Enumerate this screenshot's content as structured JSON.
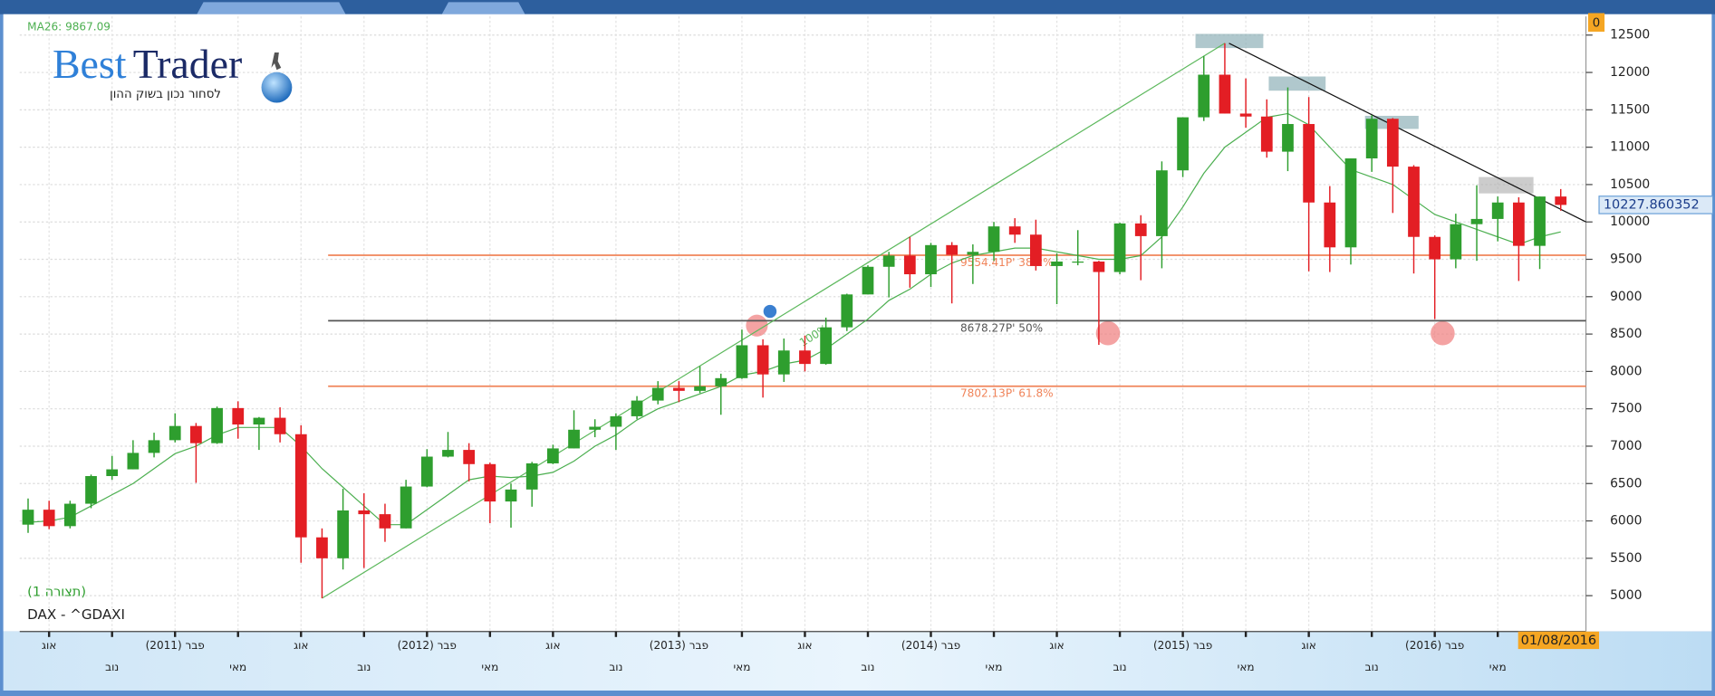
{
  "logo": {
    "best": "Best",
    "trader": "Trader",
    "tagline": "לסחור נכון בשוק ההון"
  },
  "chart_data": {
    "type": "candlestick",
    "symbol_label": "DAX - ^GDAXI",
    "layout_label": "(תצורה 1)",
    "date_label": "01/08/2016",
    "corner_tag": 0,
    "up_color": "#2e9e2e",
    "down_color": "#e31e24",
    "open": [
      5950,
      6150,
      5930,
      6230,
      6600,
      6690,
      6910,
      7080,
      7270,
      7040,
      7510,
      7290,
      7380,
      7160,
      5780,
      5500,
      6140,
      6090,
      5900,
      6460,
      6860,
      6950,
      6760,
      6260,
      6420,
      6770,
      6970,
      7220,
      7260,
      7400,
      7610,
      7780,
      7740,
      7800,
      7910,
      8350,
      7960,
      8280,
      8100,
      8590,
      9030,
      9400,
      9550,
      9300,
      9690,
      9560,
      9600,
      9940,
      9830,
      9410,
      9470,
      9470,
      9330,
      9980,
      9810,
      10690,
      11400,
      11970,
      11450,
      11410,
      10940,
      11310,
      10260,
      9660,
      10850,
      11380,
      10740,
      9800,
      9500,
      9970,
      10040,
      10260,
      9680,
      10340
    ],
    "high": [
      6300,
      6270,
      6270,
      6620,
      6870,
      7080,
      7180,
      7440,
      7310,
      7530,
      7600,
      7390,
      7520,
      7280,
      5900,
      6430,
      6370,
      6230,
      6550,
      6960,
      7190,
      7040,
      6780,
      6500,
      6790,
      7020,
      7480,
      7360,
      7440,
      7670,
      7870,
      7870,
      8070,
      7970,
      8560,
      8430,
      8440,
      8480,
      8720,
      9040,
      9420,
      9600,
      9800,
      9720,
      9730,
      9700,
      10000,
      10050,
      10030,
      9580,
      9890,
      9480,
      9990,
      10090,
      10810,
      11400,
      12220,
      12390.72,
      11920,
      11640,
      11800,
      11670,
      10480,
      10850,
      11430,
      11390,
      10760,
      9820,
      10110,
      10490,
      10340,
      10330,
      10340,
      10440
    ],
    "low": [
      5840,
      5890,
      5900,
      6170,
      6550,
      6690,
      6850,
      7050,
      6510,
      7030,
      7100,
      6950,
      7050,
      5440,
      4965.82,
      5350,
      5370,
      5720,
      5900,
      6450,
      6850,
      6530,
      5970,
      5910,
      6190,
      6760,
      6970,
      7120,
      6950,
      7360,
      7560,
      7590,
      7710,
      7420,
      7900,
      7650,
      7860,
      8000,
      8090,
      8540,
      9030,
      8990,
      9120,
      9130,
      8910,
      9170,
      9480,
      9720,
      9350,
      8900,
      9420,
      8355,
      9300,
      9220,
      9380,
      10600,
      11350,
      11450,
      11260,
      10860,
      10680,
      9340,
      9330,
      9430,
      10670,
      10120,
      9310,
      8700,
      9380,
      9480,
      9740,
      9210,
      9370,
      10150
    ],
    "close": [
      6150,
      5930,
      6230,
      6600,
      6690,
      6910,
      7080,
      7270,
      7040,
      7510,
      7290,
      7380,
      7160,
      5780,
      5500,
      6140,
      6090,
      5900,
      6460,
      6860,
      6950,
      6760,
      6260,
      6420,
      6770,
      6970,
      7220,
      7260,
      7400,
      7610,
      7780,
      7740,
      7800,
      7910,
      8350,
      7960,
      8280,
      8100,
      8590,
      9030,
      9400,
      9550,
      9300,
      9690,
      9560,
      9600,
      9940,
      9830,
      9410,
      9470,
      9470,
      9330,
      9980,
      9810,
      10690,
      11400,
      11970,
      11450,
      11410,
      10940,
      11310,
      10260,
      9660,
      10850,
      11380,
      10740,
      9800,
      9500,
      9970,
      10040,
      10260,
      9680,
      10340,
      10227.860352
    ],
    "ma": {
      "label": "MA26: 9867.09",
      "color": "#4caf50",
      "values": [
        5980,
        6000,
        6050,
        6200,
        6350,
        6500,
        6700,
        6900,
        7000,
        7150,
        7250,
        7250,
        7250,
        7000,
        6700,
        6450,
        6200,
        5950,
        5950,
        6150,
        6350,
        6550,
        6600,
        6580,
        6600,
        6650,
        6800,
        7000,
        7150,
        7350,
        7500,
        7600,
        7700,
        7800,
        7950,
        8000,
        8100,
        8150,
        8300,
        8500,
        8700,
        8950,
        9100,
        9300,
        9450,
        9550,
        9600,
        9650,
        9650,
        9600,
        9550,
        9500,
        9500,
        9550,
        9800,
        10200,
        10650,
        11000,
        11200,
        11400,
        11450,
        11300,
        11000,
        10700,
        10600,
        10500,
        10300,
        10100,
        10000,
        9900,
        9800,
        9700,
        9800,
        9867.09
      ]
    },
    "levels": [
      {
        "value": 9554.41,
        "label": "9554.41P' 38.2%",
        "color": "#f0845a"
      },
      {
        "value": 8678.27,
        "label": "8678.27P' 50%",
        "color": "#555555"
      },
      {
        "value": 7802.13,
        "label": "7802.13P' 61.8%",
        "color": "#f0845a"
      }
    ],
    "trendlines": [
      {
        "from": [
          14,
          4965.82
        ],
        "to": [
          57,
          12390.72
        ],
        "color": "#5cb85c",
        "label": "100%"
      },
      {
        "from": [
          57.2,
          12390.72
        ],
        "to": [
          74.2,
          10000
        ],
        "color": "#111111"
      }
    ],
    "xlim": [
      -0.4,
      74.2
    ],
    "ylim": [
      4520,
      12750
    ],
    "yticks": [
      5000,
      5500,
      6000,
      6500,
      7000,
      7500,
      8000,
      8500,
      9000,
      9500,
      10000,
      10500,
      11000,
      11500,
      12000,
      12500
    ],
    "xticks": [
      {
        "value": 1,
        "label": "אוג"
      },
      {
        "value": 4,
        "label": "נוב"
      },
      {
        "value": 7,
        "label": "פבר (2011)"
      },
      {
        "value": 10,
        "label": "מאי"
      },
      {
        "value": 13,
        "label": "אוג"
      },
      {
        "value": 16,
        "label": "נוב"
      },
      {
        "value": 19,
        "label": "פבר (2012)"
      },
      {
        "value": 22,
        "label": "מאי"
      },
      {
        "value": 25,
        "label": "אוג"
      },
      {
        "value": 28,
        "label": "נוב"
      },
      {
        "value": 31,
        "label": "פבר (2013)"
      },
      {
        "value": 34,
        "label": "מאי"
      },
      {
        "value": 37,
        "label": "אוג"
      },
      {
        "value": 40,
        "label": "נוב"
      },
      {
        "value": 43,
        "label": "פבר (2014)"
      },
      {
        "value": 46,
        "label": "מאי"
      },
      {
        "value": 49,
        "label": "אוג"
      },
      {
        "value": 52,
        "label": "נוב"
      },
      {
        "value": 55,
        "label": "פבר (2015)"
      },
      {
        "value": 58,
        "label": "מאי"
      },
      {
        "value": 61,
        "label": "אוג"
      },
      {
        "value": 64,
        "label": "נוב"
      },
      {
        "value": 67,
        "label": "פבר (2016)"
      },
      {
        "value": 70,
        "label": "מאי"
      }
    ],
    "grid": true
  }
}
